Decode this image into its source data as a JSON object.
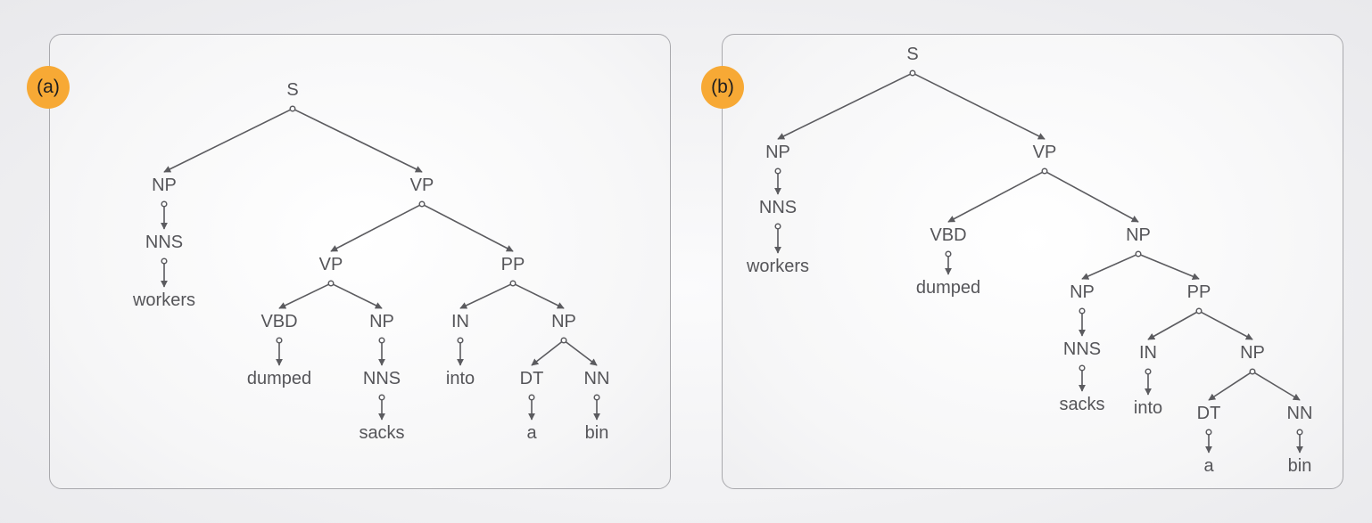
{
  "panels": [
    {
      "id": "a",
      "badge": "(a)",
      "nodes": [
        {
          "id": "a0",
          "label": "S"
        },
        {
          "id": "a1",
          "label": "NP",
          "parent": "a0"
        },
        {
          "id": "a2",
          "label": "VP",
          "parent": "a0"
        },
        {
          "id": "a3",
          "label": "NNS",
          "parent": "a1"
        },
        {
          "id": "a4",
          "label": "workers",
          "parent": "a3"
        },
        {
          "id": "a5",
          "label": "VP",
          "parent": "a2"
        },
        {
          "id": "a6",
          "label": "PP",
          "parent": "a2"
        },
        {
          "id": "a7",
          "label": "VBD",
          "parent": "a5"
        },
        {
          "id": "a8",
          "label": "NP",
          "parent": "a5"
        },
        {
          "id": "a9",
          "label": "dumped",
          "parent": "a7"
        },
        {
          "id": "a10",
          "label": "NNS",
          "parent": "a8"
        },
        {
          "id": "a11",
          "label": "sacks",
          "parent": "a10"
        },
        {
          "id": "a12",
          "label": "IN",
          "parent": "a6"
        },
        {
          "id": "a13",
          "label": "NP",
          "parent": "a6"
        },
        {
          "id": "a14",
          "label": "into",
          "parent": "a12"
        },
        {
          "id": "a15",
          "label": "DT",
          "parent": "a13"
        },
        {
          "id": "a16",
          "label": "NN",
          "parent": "a13"
        },
        {
          "id": "a17",
          "label": "a",
          "parent": "a15"
        },
        {
          "id": "a18",
          "label": "bin",
          "parent": "a16"
        }
      ]
    },
    {
      "id": "b",
      "badge": "(b)",
      "nodes": [
        {
          "id": "b0",
          "label": "S"
        },
        {
          "id": "b1",
          "label": "NP",
          "parent": "b0"
        },
        {
          "id": "b2",
          "label": "VP",
          "parent": "b0"
        },
        {
          "id": "b3",
          "label": "NNS",
          "parent": "b1"
        },
        {
          "id": "b4",
          "label": "workers",
          "parent": "b3"
        },
        {
          "id": "b5",
          "label": "VBD",
          "parent": "b2"
        },
        {
          "id": "b6",
          "label": "NP",
          "parent": "b2"
        },
        {
          "id": "b7",
          "label": "dumped",
          "parent": "b5"
        },
        {
          "id": "b8",
          "label": "NP",
          "parent": "b6"
        },
        {
          "id": "b9",
          "label": "PP",
          "parent": "b6"
        },
        {
          "id": "b10",
          "label": "NNS",
          "parent": "b8"
        },
        {
          "id": "b11",
          "label": "sacks",
          "parent": "b10"
        },
        {
          "id": "b12",
          "label": "IN",
          "parent": "b9"
        },
        {
          "id": "b13",
          "label": "NP",
          "parent": "b9"
        },
        {
          "id": "b14",
          "label": "into",
          "parent": "b12"
        },
        {
          "id": "b15",
          "label": "DT",
          "parent": "b13"
        },
        {
          "id": "b16",
          "label": "NN",
          "parent": "b13"
        },
        {
          "id": "b17",
          "label": "a",
          "parent": "b15"
        },
        {
          "id": "b18",
          "label": "bin",
          "parent": "b16"
        }
      ]
    }
  ]
}
